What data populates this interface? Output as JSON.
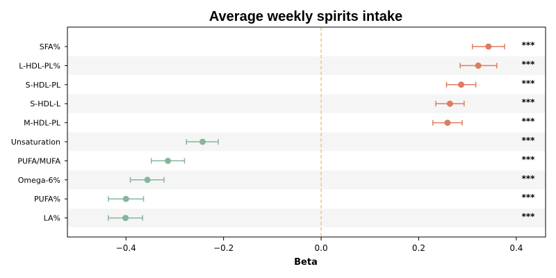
{
  "chart_data": {
    "type": "forest",
    "title": "Average weekly spirits intake",
    "xlabel": "Beta",
    "xlim": [
      -0.52,
      0.46
    ],
    "xticks": [
      -0.4,
      -0.2,
      0.0,
      0.2,
      0.4
    ],
    "xtick_labels": [
      "−0.4",
      "−0.2",
      "0.0",
      "0.2",
      "0.4"
    ],
    "reference_line": 0.0,
    "colors": {
      "positive": "#e07b5f",
      "negative": "#86b59c",
      "reference": "#f3c47a",
      "stripe": "#f5f5f5"
    },
    "rows": [
      {
        "label": "SFA%",
        "beta": 0.343,
        "ci": [
          0.31,
          0.376
        ],
        "sig": "***"
      },
      {
        "label": "L-HDL-PL%",
        "beta": 0.322,
        "ci": [
          0.285,
          0.36
        ],
        "sig": "***"
      },
      {
        "label": "S-HDL-PL",
        "beta": 0.287,
        "ci": [
          0.257,
          0.317
        ],
        "sig": "***"
      },
      {
        "label": "S-HDL-L",
        "beta": 0.264,
        "ci": [
          0.235,
          0.293
        ],
        "sig": "***"
      },
      {
        "label": "M-HDL-PL",
        "beta": 0.259,
        "ci": [
          0.229,
          0.289
        ],
        "sig": "***"
      },
      {
        "label": "Unsaturation",
        "beta": -0.243,
        "ci": [
          -0.276,
          -0.211
        ],
        "sig": "***"
      },
      {
        "label": "PUFA/MUFA",
        "beta": -0.314,
        "ci": [
          -0.348,
          -0.28
        ],
        "sig": "***"
      },
      {
        "label": "Omega-6%",
        "beta": -0.356,
        "ci": [
          -0.391,
          -0.322
        ],
        "sig": "***"
      },
      {
        "label": "PUFA%",
        "beta": -0.4,
        "ci": [
          -0.436,
          -0.364
        ],
        "sig": "***"
      },
      {
        "label": "LA%",
        "beta": -0.401,
        "ci": [
          -0.436,
          -0.366
        ],
        "sig": "***"
      }
    ]
  }
}
